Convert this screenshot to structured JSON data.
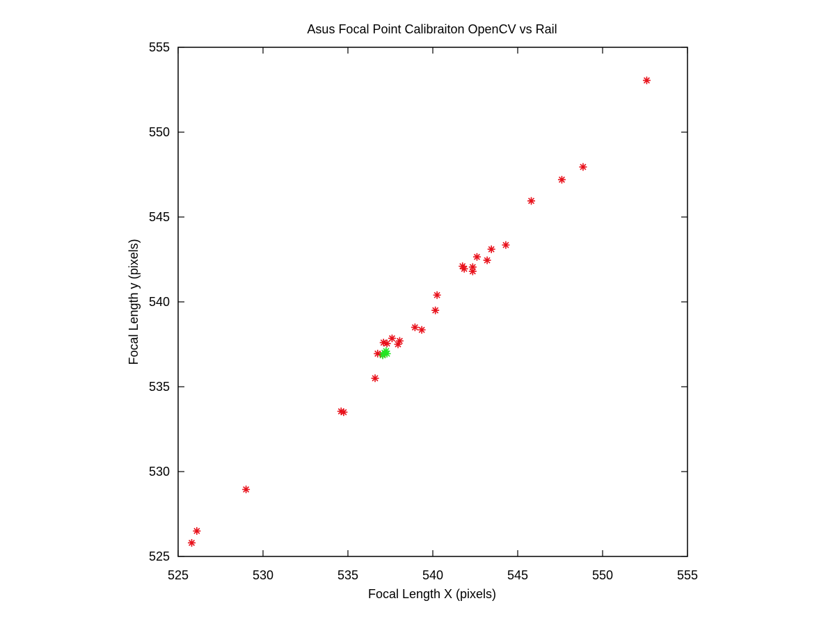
{
  "chart_data": {
    "type": "scatter",
    "title": "Asus Focal Point Calibraiton OpenCV vs Rail",
    "xlabel": "Focal Length X (pixels)",
    "ylabel": "Focal Length y (pixels)",
    "xlim": [
      525,
      555
    ],
    "ylim": [
      525,
      555
    ],
    "xticks": [
      "525",
      "530",
      "535",
      "540",
      "545",
      "550",
      "555"
    ],
    "yticks": [
      "525",
      "530",
      "535",
      "540",
      "545",
      "550",
      "555"
    ],
    "grid": false,
    "marker": "asterisk",
    "series": [
      {
        "color": "#e8101a",
        "points": [
          [
            525.8,
            525.8
          ],
          [
            526.1,
            526.5
          ],
          [
            529.0,
            528.95
          ],
          [
            534.6,
            533.55
          ],
          [
            534.75,
            533.5
          ],
          [
            536.6,
            535.5
          ],
          [
            536.75,
            536.95
          ],
          [
            537.05,
            536.9
          ],
          [
            537.1,
            537.6
          ],
          [
            537.3,
            537.55
          ],
          [
            537.6,
            537.85
          ],
          [
            537.95,
            537.5
          ],
          [
            538.05,
            537.7
          ],
          [
            538.95,
            538.5
          ],
          [
            539.35,
            538.35
          ],
          [
            540.15,
            539.5
          ],
          [
            540.25,
            540.4
          ],
          [
            541.75,
            542.1
          ],
          [
            541.85,
            541.95
          ],
          [
            542.35,
            542.05
          ],
          [
            542.35,
            541.8
          ],
          [
            542.6,
            542.65
          ],
          [
            543.2,
            542.45
          ],
          [
            543.45,
            543.1
          ],
          [
            544.3,
            543.35
          ],
          [
            545.8,
            545.95
          ],
          [
            547.6,
            547.2
          ],
          [
            548.85,
            547.95
          ],
          [
            552.6,
            553.05
          ]
        ]
      },
      {
        "color": "#22e622",
        "points": [
          [
            537.05,
            536.85
          ],
          [
            537.15,
            537.0
          ],
          [
            537.25,
            537.1
          ],
          [
            537.3,
            536.95
          ]
        ]
      }
    ]
  }
}
